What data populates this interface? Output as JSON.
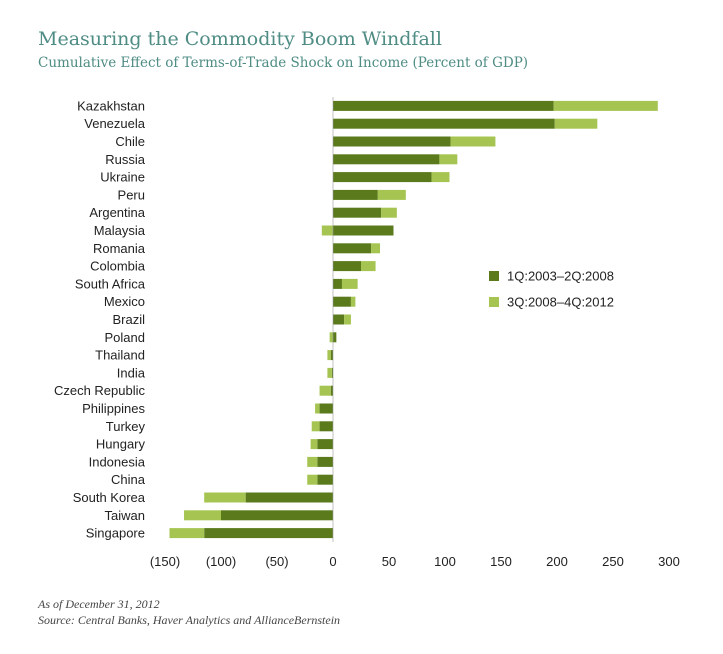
{
  "header": {
    "title": "Measuring the Commodity Boom Windfall",
    "subtitle": "Cumulative Effect of Terms-of-Trade Shock on Income (Percent of GDP)"
  },
  "footer": {
    "as_of": "As of December 31, 2012",
    "source": "Source: Central Banks, Haver Analytics and AllianceBernstein"
  },
  "colors": {
    "series1": "#5a7a1c",
    "series2": "#a5c451",
    "text": "#222222",
    "title": "#4e8c84"
  },
  "chart_data": {
    "type": "bar",
    "orientation": "horizontal",
    "stacked": true,
    "title": "Measuring the Commodity Boom Windfall",
    "subtitle": "Cumulative Effect of Terms-of-Trade Shock on Income (Percent of GDP)",
    "categories": [
      "Kazakhstan",
      "Venezuela",
      "Chile",
      "Russia",
      "Ukraine",
      "Peru",
      "Argentina",
      "Malaysia",
      "Romania",
      "Colombia",
      "South Africa",
      "Mexico",
      "Brazil",
      "Poland",
      "Thailand",
      "India",
      "Czech Republic",
      "Philippines",
      "Turkey",
      "Hungary",
      "Indonesia",
      "China",
      "South Korea",
      "Taiwan",
      "Singapore"
    ],
    "series": [
      {
        "name": "1Q:2003–2Q:2008",
        "values": [
          197,
          198,
          105,
          95,
          88,
          40,
          43,
          54,
          34,
          25,
          8,
          16,
          10,
          3,
          -2,
          -1,
          -2,
          -12,
          -12,
          -14,
          -14,
          -14,
          -78,
          -100,
          -115
        ]
      },
      {
        "name": "3Q:2008–4Q:2012",
        "values": [
          93,
          38,
          40,
          16,
          16,
          25,
          14,
          -10,
          8,
          13,
          14,
          4,
          6,
          -3,
          -3,
          -4,
          -10,
          -4,
          -7,
          -6,
          -9,
          -9,
          -37,
          -33,
          -31
        ]
      }
    ],
    "xlim": [
      -150,
      300
    ],
    "xticks": [
      -150,
      -100,
      -50,
      0,
      50,
      100,
      150,
      200,
      250,
      300
    ],
    "xtick_labels": [
      "(150)",
      "(100)",
      "(50)",
      "0",
      "50",
      "100",
      "150",
      "200",
      "250",
      "300"
    ],
    "legend_position": "right",
    "grid": false
  }
}
